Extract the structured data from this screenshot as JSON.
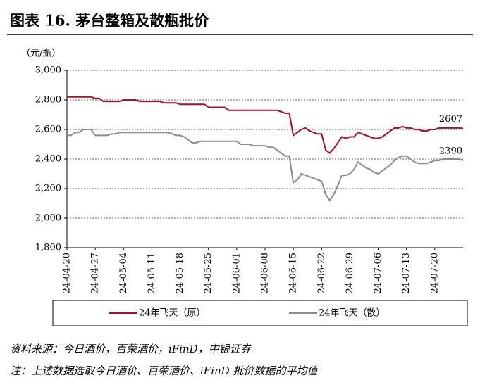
{
  "chart_data": {
    "type": "line",
    "title": "图表 16. 茅台整箱及散瓶批价",
    "y_label": "（元/瓶）",
    "categories": [
      "24-04-20",
      null,
      null,
      null,
      null,
      null,
      null,
      "24-04-27",
      null,
      null,
      null,
      null,
      null,
      null,
      "24-05-04",
      null,
      null,
      null,
      null,
      null,
      null,
      "24-05-11",
      null,
      null,
      null,
      null,
      null,
      null,
      "24-05-18",
      null,
      null,
      null,
      null,
      null,
      null,
      "24-05-25",
      null,
      null,
      null,
      null,
      null,
      null,
      "24-06-01",
      null,
      null,
      null,
      null,
      null,
      null,
      "24-06-08",
      null,
      null,
      null,
      null,
      null,
      null,
      "24-06-15",
      null,
      null,
      null,
      null,
      null,
      null,
      "24-06-22",
      null,
      null,
      null,
      null,
      null,
      null,
      "24-06-29",
      null,
      null,
      null,
      null,
      null,
      null,
      "24-07-06",
      null,
      null,
      null,
      null,
      null,
      null,
      "24-07-13",
      null,
      null,
      null,
      null,
      null,
      null,
      "24-07-20",
      null,
      null,
      null,
      null,
      null,
      null,
      null
    ],
    "series": [
      {
        "name": "24年飞天（原）",
        "color": "#a50f2d",
        "values": [
          2820,
          2820,
          2820,
          2820,
          2820,
          2820,
          2820,
          2810,
          2810,
          2790,
          2790,
          2790,
          2790,
          2790,
          2800,
          2800,
          2800,
          2800,
          2790,
          2790,
          2790,
          2790,
          2790,
          2790,
          2780,
          2780,
          2780,
          2780,
          2770,
          2770,
          2770,
          2770,
          2770,
          2770,
          2770,
          2750,
          2750,
          2750,
          2750,
          2750,
          2730,
          2730,
          2730,
          2730,
          2730,
          2730,
          2730,
          2730,
          2730,
          2730,
          2730,
          2730,
          2730,
          2720,
          2710,
          2710,
          2560,
          2580,
          2600,
          2610,
          2590,
          2580,
          2570,
          2570,
          2460,
          2440,
          2470,
          2510,
          2550,
          2540,
          2550,
          2550,
          2580,
          2570,
          2560,
          2550,
          2540,
          2540,
          2550,
          2570,
          2590,
          2610,
          2610,
          2620,
          2610,
          2610,
          2600,
          2600,
          2590,
          2590,
          2600,
          2600,
          2610,
          2610,
          2610,
          2610,
          2610,
          2610,
          2607
        ]
      },
      {
        "name": "24年飞天（散）",
        "color": "#8c8c8c",
        "values": [
          2560,
          2560,
          2580,
          2580,
          2600,
          2600,
          2600,
          2560,
          2560,
          2560,
          2560,
          2570,
          2570,
          2580,
          2580,
          2580,
          2580,
          2580,
          2580,
          2580,
          2580,
          2580,
          2580,
          2580,
          2580,
          2580,
          2570,
          2560,
          2560,
          2550,
          2530,
          2510,
          2510,
          2520,
          2520,
          2520,
          2520,
          2520,
          2520,
          2520,
          2520,
          2520,
          2520,
          2500,
          2500,
          2500,
          2490,
          2490,
          2490,
          2490,
          2480,
          2480,
          2460,
          2440,
          2420,
          2420,
          2240,
          2260,
          2300,
          2290,
          2280,
          2270,
          2260,
          2250,
          2160,
          2120,
          2160,
          2220,
          2290,
          2290,
          2300,
          2330,
          2380,
          2360,
          2340,
          2330,
          2310,
          2300,
          2320,
          2340,
          2360,
          2390,
          2410,
          2420,
          2420,
          2400,
          2380,
          2370,
          2370,
          2370,
          2380,
          2390,
          2390,
          2400,
          2400,
          2400,
          2400,
          2400,
          2390
        ]
      }
    ],
    "ylim": [
      1800,
      3000
    ],
    "yticks": [
      {
        "value": 1800,
        "label": "1,800"
      },
      {
        "value": 2000,
        "label": "2,000"
      },
      {
        "value": 2200,
        "label": "2,200"
      },
      {
        "value": 2400,
        "label": "2,400"
      },
      {
        "value": 2600,
        "label": "2,600"
      },
      {
        "value": 2800,
        "label": "2,800"
      },
      {
        "value": 3000,
        "label": "3,000"
      }
    ],
    "grid": true,
    "legend": "bottom",
    "source": "资料来源：今日酒价，百荣酒价，iFinD，中银证券",
    "note": "注：上述数据选取今日酒价、百荣酒价、iFinD 批价数据的平均值"
  }
}
